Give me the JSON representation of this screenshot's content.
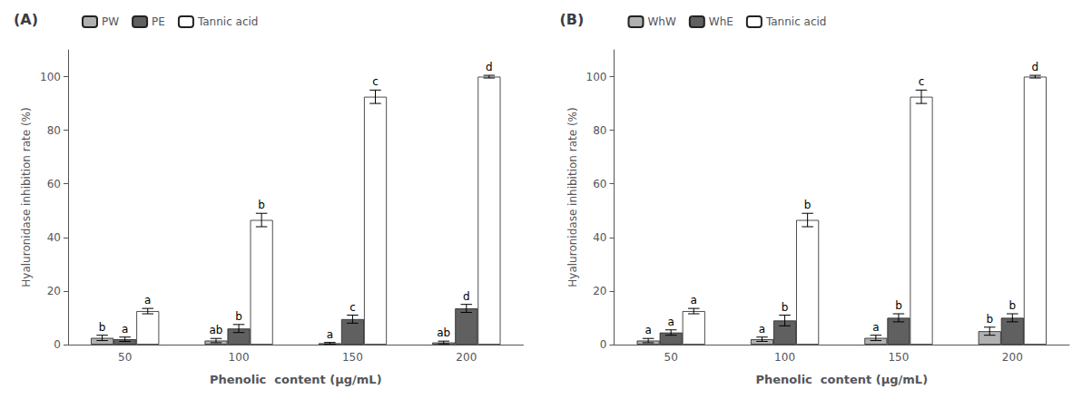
{
  "chart_data": [
    {
      "type": "bar",
      "title": "(A)",
      "xlabel": "Phenolic  content (μg/mL)",
      "ylabel": "Hyaluronidase inhibition rate (%)",
      "categories": [
        "50",
        "100",
        "150",
        "200"
      ],
      "series": [
        {
          "name": "PW",
          "color": "#b0b0b0",
          "values": [
            2.5,
            1.5,
            0.5,
            0.8
          ],
          "errors": [
            1.0,
            0.8,
            0.3,
            0.5
          ],
          "letters": [
            "b",
            "ab",
            "a",
            "ab"
          ]
        },
        {
          "name": "PE",
          "color": "#606060",
          "values": [
            2.0,
            6.0,
            9.5,
            13.5
          ],
          "errors": [
            0.8,
            1.5,
            1.5,
            1.5
          ],
          "letters": [
            "a",
            "b",
            "c",
            "d"
          ]
        },
        {
          "name": "Tannic acid",
          "color": "#ffffff",
          "values": [
            12.5,
            46.5,
            92.5,
            100.0
          ],
          "errors": [
            1.0,
            2.5,
            2.5,
            0.5
          ],
          "letters": [
            "a",
            "b",
            "c",
            "d"
          ]
        }
      ],
      "ylim": [
        0,
        110
      ],
      "yticks": [
        0,
        20,
        40,
        60,
        80,
        100
      ],
      "grid": false,
      "legend": "upper left"
    },
    {
      "type": "bar",
      "title": "(B)",
      "xlabel": "Phenolic  content (μg/mL)",
      "ylabel": "Hyaluronidase inhibition rate (%)",
      "categories": [
        "50",
        "100",
        "150",
        "200"
      ],
      "series": [
        {
          "name": "WhW",
          "color": "#b0b0b0",
          "values": [
            1.5,
            2.0,
            2.5,
            5.0
          ],
          "errors": [
            0.8,
            0.8,
            1.0,
            1.5
          ],
          "letters": [
            "a",
            "a",
            "a",
            "b"
          ]
        },
        {
          "name": "WhE",
          "color": "#606060",
          "values": [
            4.5,
            9.0,
            10.0,
            10.0
          ],
          "errors": [
            1.0,
            2.0,
            1.5,
            1.5
          ],
          "letters": [
            "a",
            "b",
            "b",
            "b"
          ]
        },
        {
          "name": "Tannic acid",
          "color": "#ffffff",
          "values": [
            12.5,
            46.5,
            92.5,
            100.0
          ],
          "errors": [
            1.0,
            2.5,
            2.5,
            0.5
          ],
          "letters": [
            "a",
            "b",
            "c",
            "d"
          ]
        }
      ],
      "ylim": [
        0,
        110
      ],
      "yticks": [
        0,
        20,
        40,
        60,
        80,
        100
      ],
      "grid": false,
      "legend": "upper left"
    }
  ]
}
